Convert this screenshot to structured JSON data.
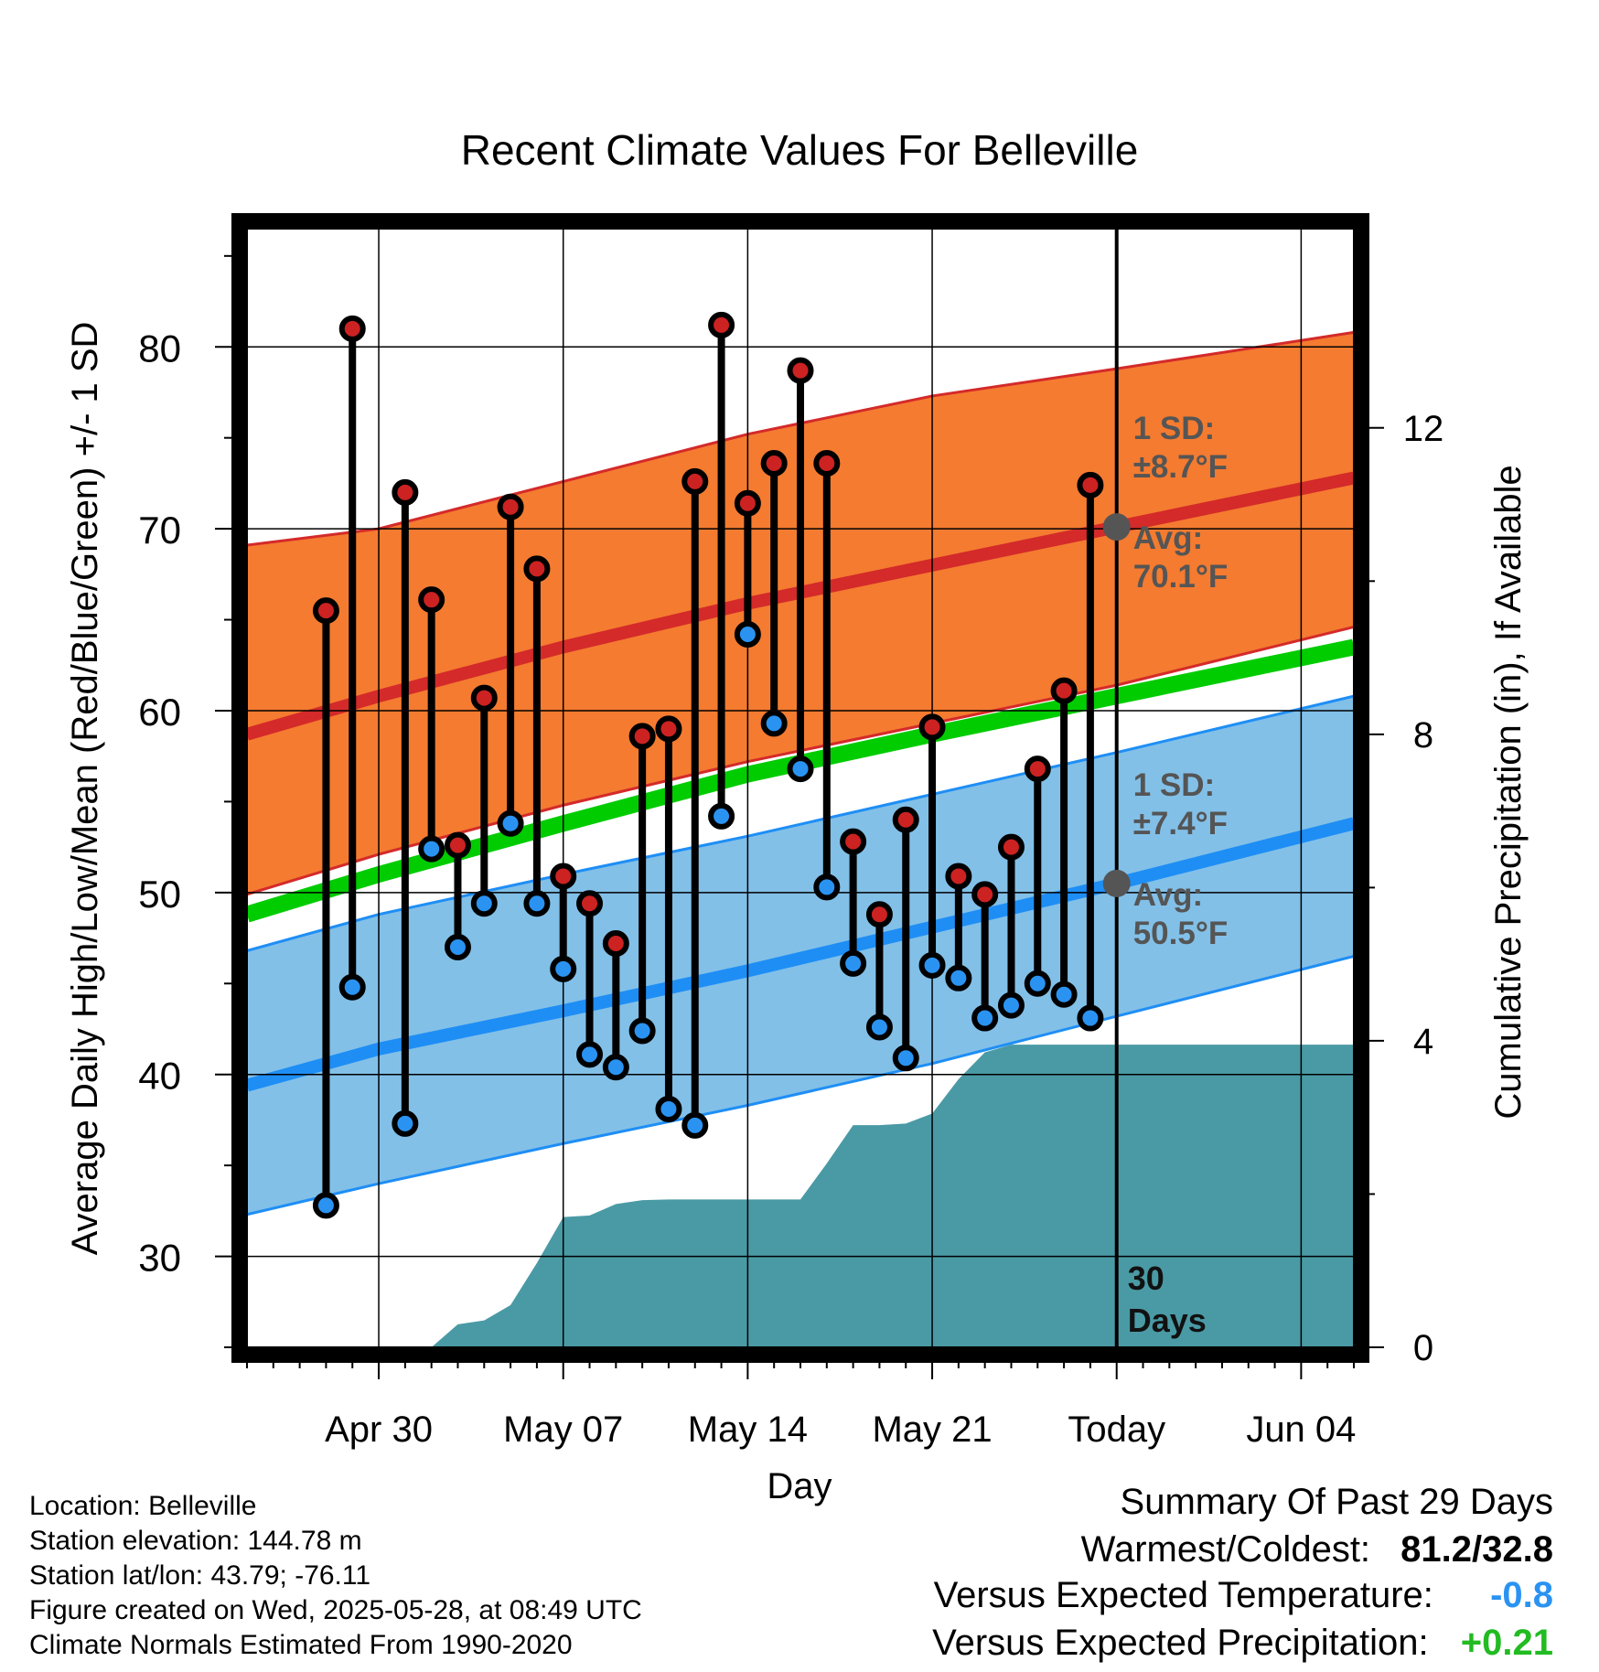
{
  "chart_data": {
    "type": "line",
    "title": "Recent Climate Values For Belleville",
    "xlabel": "Day",
    "ylabel_left": "Average Daily High/Low/Mean (Red/Blue/Green) +/- 1 SD",
    "ylabel_right": "Cumulative Precipitation (in), If Available",
    "ylim": [
      25,
      86.5
    ],
    "y_right_lim": [
      0,
      14.6
    ],
    "y_ticks": [
      30,
      40,
      50,
      60,
      70,
      80
    ],
    "y_right_ticks": [
      0,
      4,
      8,
      12
    ],
    "x_range_days": [
      -33,
      9
    ],
    "x_ticks": [
      {
        "day": -28,
        "label": "Apr 30"
      },
      {
        "day": -21,
        "label": "May 07"
      },
      {
        "day": -14,
        "label": "May 14"
      },
      {
        "day": -7,
        "label": "May 21"
      },
      {
        "day": 0,
        "label": "Today"
      },
      {
        "day": 7,
        "label": "Jun 04"
      }
    ],
    "today_label": "30\nDays",
    "normals": {
      "days": [
        -33,
        -28,
        -21,
        -14,
        -7,
        0,
        9
      ],
      "high_avg": [
        58.7,
        60.8,
        63.5,
        65.9,
        68.0,
        70.1,
        72.8
      ],
      "high_upper": [
        69.1,
        70.0,
        72.6,
        75.2,
        77.3,
        78.8,
        80.8
      ],
      "high_lower": [
        49.9,
        52.1,
        54.8,
        57.2,
        59.3,
        61.4,
        64.6
      ],
      "mean": [
        48.8,
        51.0,
        53.8,
        56.5,
        58.7,
        60.8,
        63.5
      ],
      "low_avg": [
        39.4,
        41.4,
        43.5,
        45.7,
        48.1,
        50.5,
        53.8
      ],
      "low_upper": [
        46.8,
        48.8,
        51.0,
        53.1,
        55.4,
        57.7,
        60.8
      ],
      "low_lower": [
        32.3,
        34.0,
        36.2,
        38.3,
        40.6,
        43.2,
        46.5
      ]
    },
    "annotations": {
      "high": {
        "sd_label": "1 SD:",
        "sd_value": "±8.7°F",
        "avg_label": "Avg:",
        "avg_value": "70.1°F",
        "avg": 70.1
      },
      "low": {
        "sd_label": "1 SD:",
        "sd_value": "±7.4°F",
        "avg_label": "Avg:",
        "avg_value": "50.5°F",
        "avg": 50.5
      }
    },
    "daily": {
      "days": [
        -30,
        -29,
        -27,
        -26,
        -25,
        -24,
        -23,
        -22,
        -21,
        -20,
        -19,
        -18,
        -17,
        -16,
        -15,
        -14,
        -13,
        -12,
        -11,
        -10,
        -9,
        -8,
        -7,
        -6,
        -5,
        -4,
        -3,
        -2,
        -1
      ],
      "high": [
        65.5,
        81.0,
        72.0,
        66.1,
        52.6,
        60.7,
        71.2,
        67.8,
        50.9,
        49.4,
        47.2,
        58.6,
        59.0,
        72.6,
        81.2,
        71.4,
        73.6,
        78.7,
        73.6,
        52.8,
        48.8,
        54.0,
        59.1,
        50.9,
        49.9,
        52.5,
        56.8,
        61.1,
        72.4
      ],
      "low": [
        32.8,
        44.8,
        37.3,
        52.4,
        47.0,
        49.4,
        53.8,
        49.4,
        45.8,
        41.1,
        40.4,
        42.4,
        38.1,
        37.2,
        54.2,
        64.2,
        59.3,
        56.8,
        50.3,
        46.1,
        42.6,
        40.9,
        46.0,
        45.3,
        43.1,
        43.8,
        45.0,
        44.4,
        43.1
      ],
      "high_color": "#cc2222",
      "low_color": "#2a93f2"
    },
    "precip_cumulative": {
      "days": [
        -33,
        -26,
        -25,
        -24,
        -23,
        -22,
        -21,
        -20,
        -19,
        -18,
        -17,
        -12,
        -11,
        -10,
        -9,
        -8,
        -7,
        -6,
        -5,
        -4,
        -3,
        9
      ],
      "values": [
        0,
        0,
        0.3,
        0.35,
        0.55,
        1.1,
        1.7,
        1.72,
        1.87,
        1.92,
        1.93,
        1.93,
        2.4,
        2.9,
        2.9,
        2.92,
        3.05,
        3.5,
        3.85,
        3.95,
        3.95,
        3.95
      ],
      "color": "#4a9aa5"
    },
    "colors": {
      "high_band": "#f47b30",
      "high_line": "#d42a2a",
      "mean_line": "#00cc00",
      "low_band": "#82c0e8",
      "low_line": "#1e8ef5",
      "annotation_text": "#555555"
    }
  },
  "meta": {
    "location": "Location: Belleville",
    "elevation": "Station elevation: 144.78 m",
    "latlon": "Station lat/lon: 43.79; -76.11",
    "created": "Figure created on Wed, 2025-05-28, at 08:49 UTC",
    "normals": "Climate Normals Estimated From 1990-2020"
  },
  "summary": {
    "title": "Summary Of Past 29 Days",
    "warm_cold_label": "Warmest/Coldest:",
    "warm_cold_value": "81.2/32.8",
    "temp_label": "Versus Expected Temperature:",
    "temp_value": "-0.8",
    "temp_color": "#2a93f2",
    "precip_label": "Versus Expected Precipitation:",
    "precip_value": "+0.21",
    "precip_color": "#22bb22"
  }
}
